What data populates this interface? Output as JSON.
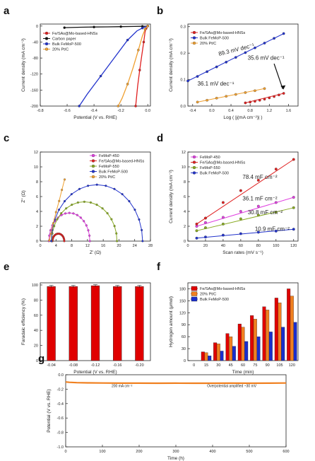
{
  "chart_data": [
    {
      "panel_label": "a",
      "type": "line",
      "xlabel": "Potential (V vs. RHE)",
      "ylabel": "Current density (mA cm⁻²)",
      "xlim": [
        -0.8,
        0.02
      ],
      "ylim": [
        -200,
        5
      ],
      "xticks": [
        -0.8,
        -0.6,
        -0.4,
        -0.2,
        0.0
      ],
      "xtick_labels": [
        "-0.8",
        "-0.6",
        "-0.4",
        "-0.2",
        "0.0"
      ],
      "yticks": [
        0,
        -40,
        -80,
        -120,
        -160,
        -200
      ],
      "ytick_labels": [
        "0",
        "-40",
        "-80",
        "-120",
        "-160",
        "-200"
      ],
      "legend_placement": "top-left",
      "series": [
        {
          "name": "Fe/SAs@Mo-based-HNSs",
          "color": "#e02020",
          "x": [
            0.0,
            -0.005,
            -0.012,
            -0.02,
            -0.03,
            -0.045,
            -0.06,
            -0.075,
            -0.09
          ],
          "y": [
            0,
            -2,
            -6,
            -15,
            -40,
            -75,
            -110,
            -150,
            -200
          ]
        },
        {
          "name": "Carbon paper",
          "color": "#111111",
          "x": [
            -0.62,
            -0.5,
            -0.4,
            -0.3,
            -0.2,
            -0.1,
            -0.04,
            -0.01,
            0.0
          ],
          "y": [
            -4,
            -3,
            -2.5,
            -2,
            -1.5,
            -1,
            -0.6,
            -0.3,
            0
          ]
        },
        {
          "name": "Bulk FeMoP-500",
          "color": "#2233cc",
          "x": [
            0.0,
            -0.02,
            -0.04,
            -0.08,
            -0.15,
            -0.25,
            -0.35,
            -0.45,
            -0.51
          ],
          "y": [
            0,
            -2,
            -5,
            -12,
            -35,
            -80,
            -125,
            -170,
            -200
          ]
        },
        {
          "name": "20% Pt/C",
          "color": "#f0a030",
          "x": [
            0.0,
            -0.01,
            -0.02,
            -0.04,
            -0.07,
            -0.11,
            -0.15,
            -0.19,
            -0.22
          ],
          "y": [
            0,
            -3,
            -8,
            -25,
            -60,
            -105,
            -145,
            -180,
            -200
          ]
        }
      ]
    },
    {
      "panel_label": "b",
      "type": "scatter",
      "xlabel": "Log ( |j(mA cm⁻²)| )",
      "ylabel": "Current density (mA cm⁻²)",
      "xlim": [
        -0.5,
        1.8
      ],
      "ylim": [
        0.0,
        0.31
      ],
      "xticks": [
        -0.4,
        0.0,
        0.4,
        0.8,
        1.2,
        1.6
      ],
      "xtick_labels": [
        "-0.4",
        "0.0",
        "0.4",
        "0.8",
        "1.2",
        "1.6"
      ],
      "yticks": [
        0.0,
        0.1,
        0.2,
        0.3
      ],
      "ytick_labels": [
        "0.0",
        "0.1",
        "0.2",
        "0.3"
      ],
      "legend_placement": "top-left",
      "series": [
        {
          "name": "Fe/SAs@Mo-based-HNSs",
          "color": "#e02020",
          "x": [
            0.7,
            0.8,
            0.9,
            1.0,
            1.1,
            1.2,
            1.3,
            1.4,
            1.5
          ],
          "y": [
            0.012,
            0.015,
            0.018,
            0.022,
            0.026,
            0.031,
            0.036,
            0.042,
            0.048
          ]
        },
        {
          "name": "Bulk FeMoP-500",
          "color": "#2233cc",
          "x": [
            -0.5,
            -0.3,
            -0.1,
            0.1,
            0.3,
            0.5,
            0.7,
            0.9,
            1.1,
            1.3,
            1.5
          ],
          "y": [
            0.095,
            0.112,
            0.13,
            0.148,
            0.166,
            0.184,
            0.202,
            0.22,
            0.238,
            0.256,
            0.274
          ]
        },
        {
          "name": "20% Pt/C",
          "color": "#f0a030",
          "x": [
            -0.3,
            -0.1,
            0.1,
            0.3,
            0.5,
            0.7,
            0.9,
            1.1
          ],
          "y": [
            0.015,
            0.022,
            0.03,
            0.037,
            0.044,
            0.051,
            0.058,
            0.066
          ]
        }
      ],
      "annotations": [
        "89.3 mV dec⁻¹",
        "35.6 mV dec⁻¹",
        "36.1 mV dec⁻¹"
      ]
    },
    {
      "panel_label": "c",
      "type": "scatter",
      "xlabel": "Z' (Ω)",
      "ylabel": "Z'' (Ω)",
      "xlim": [
        0,
        28
      ],
      "ylim": [
        0,
        12
      ],
      "xticks": [
        0,
        4,
        8,
        12,
        16,
        20,
        24,
        28
      ],
      "xtick_labels": [
        "0",
        "4",
        "8",
        "12",
        "16",
        "20",
        "24",
        "28"
      ],
      "yticks": [
        0,
        2,
        4,
        6,
        8,
        10,
        12
      ],
      "ytick_labels": [
        "0",
        "2",
        "4",
        "6",
        "8",
        "10",
        "12"
      ],
      "legend_placement": "top-right",
      "series": [
        {
          "name": "FeMoP-450",
          "color": "#e040e0",
          "center": 7.4,
          "radius": 5.2,
          "peak": 3.8
        },
        {
          "name": "Fe/SAs@Mo-based-HNSs",
          "color": "#e02020",
          "center": 4.6,
          "radius": 1.5,
          "peak": 1.0
        },
        {
          "name": "FeMoP-550",
          "color": "#88aa22",
          "center": 11.2,
          "radius": 8.3,
          "peak": 5.3
        },
        {
          "name": "Bulk FeMoP-500",
          "color": "#2233cc",
          "center": 14.4,
          "radius": 11.6,
          "peak": 7.6
        },
        {
          "name": "20% Pt/C",
          "color": "#f0a030",
          "x": [
            2.3,
            2.7,
            3.3,
            4.0,
            4.8,
            5.5,
            6.2
          ],
          "y": [
            0.1,
            1.0,
            2.4,
            3.9,
            5.4,
            6.9,
            8.3
          ]
        }
      ]
    },
    {
      "panel_label": "d",
      "type": "scatter",
      "xlabel": "Scan rates (mV s⁻¹)",
      "ylabel": "Current density (mA cm⁻²)",
      "xlim": [
        0,
        125
      ],
      "ylim": [
        0,
        12
      ],
      "xticks": [
        0,
        20,
        40,
        60,
        80,
        100,
        120
      ],
      "xtick_labels": [
        "0",
        "20",
        "40",
        "60",
        "80",
        "100",
        "120"
      ],
      "yticks": [
        0,
        2,
        4,
        6,
        8,
        10,
        12
      ],
      "ytick_labels": [
        "0",
        "2",
        "4",
        "6",
        "8",
        "10",
        "12"
      ],
      "legend_placement": "top-left",
      "x": [
        10,
        20,
        40,
        60,
        80,
        100,
        120
      ],
      "series": [
        {
          "name": "FeMoP-450",
          "color": "#e040e0",
          "y": [
            2.0,
            2.5,
            3.2,
            4.0,
            4.7,
            5.2,
            5.9
          ]
        },
        {
          "name": "Fe/SAs@Mo-based-HNSs",
          "color": "#e02020",
          "y": [
            2.3,
            3.1,
            5.2,
            6.8,
            8.2,
            9.7,
            11.0
          ]
        },
        {
          "name": "FeMoP-550",
          "color": "#88aa22",
          "y": [
            1.4,
            1.8,
            2.3,
            3.0,
            3.5,
            3.9,
            4.5
          ]
        },
        {
          "name": "Bulk FeMoP-500",
          "color": "#2233cc",
          "y": [
            0.4,
            0.55,
            0.8,
            1.0,
            1.2,
            1.35,
            1.6
          ]
        }
      ],
      "annotations": [
        "78.4 mF cm⁻²",
        "36.1 mF cm⁻²",
        "30.8 mF cm⁻²",
        "10.9 mF cm⁻²"
      ]
    },
    {
      "panel_label": "e",
      "type": "bar",
      "xlabel": "Potential (V vs. RHE)",
      "ylabel": "Faradaic efficiency (%)",
      "ylim": [
        0,
        100
      ],
      "yticks": [
        0,
        20,
        40,
        60,
        80,
        100
      ],
      "ytick_labels": [
        "0",
        "20",
        "40",
        "60",
        "80",
        "100"
      ],
      "categories": [
        "-0.04",
        "-0.08",
        "-0.12",
        "-0.16",
        "-0.20"
      ],
      "values": [
        98,
        98,
        99,
        98,
        98
      ],
      "color": "#e00000"
    },
    {
      "panel_label": "f",
      "type": "bar",
      "xlabel": "Time (min)",
      "ylabel": "Hydrogen amount (μmol)",
      "ylim": [
        0,
        195
      ],
      "yticks": [
        0,
        30,
        60,
        90,
        120,
        150,
        180
      ],
      "ytick_labels": [
        "0",
        "30",
        "60",
        "90",
        "120",
        "150",
        "180"
      ],
      "categories": [
        "15",
        "30",
        "45",
        "60",
        "75",
        "90",
        "105",
        "120"
      ],
      "axis_tick_labels": [
        "0",
        "15",
        "30",
        "45",
        "60",
        "75",
        "90",
        "105",
        "120"
      ],
      "legend_placement": "top-left",
      "series": [
        {
          "name": "Fe/SAs@Mo-based-HNSs",
          "color": "#e00000",
          "values": [
            22,
            45,
            68,
            92,
            113,
            135,
            157,
            180
          ]
        },
        {
          "name": "20% Pt/C",
          "color": "#f08020",
          "values": [
            20,
            42,
            60,
            84,
            104,
            127,
            145,
            162
          ]
        },
        {
          "name": "Bulk FeMoP-500",
          "color": "#1a2ecc",
          "values": [
            12,
            24,
            36,
            48,
            60,
            72,
            84,
            96
          ]
        }
      ]
    },
    {
      "panel_label": "g",
      "type": "line",
      "xlabel": "Time (h)",
      "ylabel": "Potential (V vs. RHE)",
      "xlim": [
        0,
        600
      ],
      "ylim": [
        -1.0,
        0.0
      ],
      "xticks": [
        0,
        100,
        200,
        300,
        400,
        500,
        600
      ],
      "xtick_labels": [
        "0",
        "100",
        "200",
        "300",
        "400",
        "500",
        "600"
      ],
      "yticks": [
        0.0,
        -0.2,
        -0.4,
        -0.6,
        -0.8,
        -1.0
      ],
      "ytick_labels": [
        "0.0",
        "-0.2",
        "-0.4",
        "-0.6",
        "-0.8",
        "-1.0"
      ],
      "series": [
        {
          "color": "#f08020",
          "x": [
            0,
            10,
            30,
            60,
            100,
            150,
            200,
            250,
            300,
            350,
            400,
            450,
            500,
            550,
            600
          ],
          "y": [
            -0.1,
            -0.105,
            -0.11,
            -0.113,
            -0.115,
            -0.117,
            -0.117,
            -0.118,
            -0.117,
            -0.118,
            -0.118,
            -0.117,
            -0.118,
            -0.117,
            -0.115
          ]
        }
      ],
      "annotations": [
        "200 mA cm⁻²",
        "Overpotential amplified ~30 mV"
      ]
    }
  ]
}
